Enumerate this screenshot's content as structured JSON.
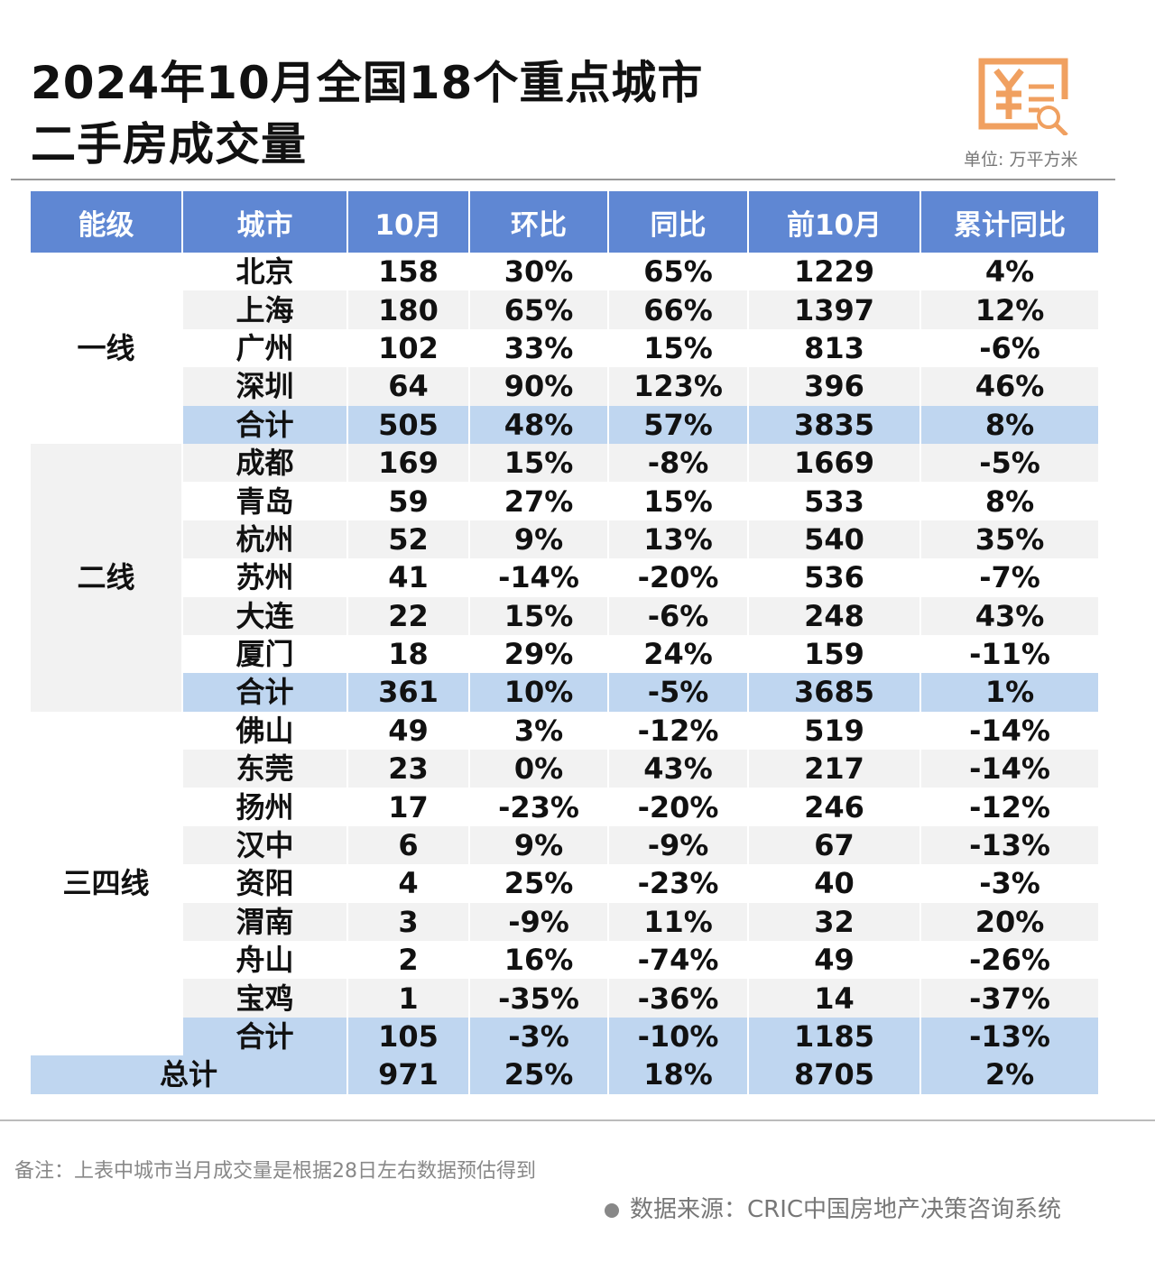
{
  "title_line1": "2024年10月全国18个重点城市",
  "title_line2": "二手房成交量",
  "unit": "单位: 万平方米",
  "colors": {
    "header": "#5f87d3",
    "subtotal": "#bfd6f0",
    "icon": "#f0a060"
  },
  "headers": [
    "能级",
    "城市",
    "10月",
    "环比",
    "同比",
    "前10月",
    "累计同比"
  ],
  "groups": [
    {
      "tier": "一线",
      "rows": [
        [
          "北京",
          "158",
          "30%",
          "65%",
          "1229",
          "4%"
        ],
        [
          "上海",
          "180",
          "65%",
          "66%",
          "1397",
          "12%"
        ],
        [
          "广州",
          "102",
          "33%",
          "15%",
          "813",
          "-6%"
        ],
        [
          "深圳",
          "64",
          "90%",
          "123%",
          "396",
          "46%"
        ],
        [
          "合计",
          "505",
          "48%",
          "57%",
          "3835",
          "8%"
        ]
      ]
    },
    {
      "tier": "二线",
      "rows": [
        [
          "成都",
          "169",
          "15%",
          "-8%",
          "1669",
          "-5%"
        ],
        [
          "青岛",
          "59",
          "27%",
          "15%",
          "533",
          "8%"
        ],
        [
          "杭州",
          "52",
          "9%",
          "13%",
          "540",
          "35%"
        ],
        [
          "苏州",
          "41",
          "-14%",
          "-20%",
          "536",
          "-7%"
        ],
        [
          "大连",
          "22",
          "15%",
          "-6%",
          "248",
          "43%"
        ],
        [
          "厦门",
          "18",
          "29%",
          "24%",
          "159",
          "-11%"
        ],
        [
          "合计",
          "361",
          "10%",
          "-5%",
          "3685",
          "1%"
        ]
      ]
    },
    {
      "tier": "三四线",
      "rows": [
        [
          "佛山",
          "49",
          "3%",
          "-12%",
          "519",
          "-14%"
        ],
        [
          "东莞",
          "23",
          "0%",
          "43%",
          "217",
          "-14%"
        ],
        [
          "扬州",
          "17",
          "-23%",
          "-20%",
          "246",
          "-12%"
        ],
        [
          "汉中",
          "6",
          "9%",
          "-9%",
          "67",
          "-13%"
        ],
        [
          "资阳",
          "4",
          "25%",
          "-23%",
          "40",
          "-3%"
        ],
        [
          "渭南",
          "3",
          "-9%",
          "11%",
          "32",
          "20%"
        ],
        [
          "舟山",
          "2",
          "16%",
          "-74%",
          "49",
          "-26%"
        ],
        [
          "宝鸡",
          "1",
          "-35%",
          "-36%",
          "14",
          "-37%"
        ],
        [
          "合计",
          "105",
          "-3%",
          "-10%",
          "1185",
          "-13%"
        ]
      ]
    }
  ],
  "total": [
    "总计",
    "971",
    "25%",
    "18%",
    "8705",
    "2%"
  ],
  "note": "备注：上表中城市当月成交量是根据28日左右数据预估得到",
  "source": "数据来源：CRIC中国房地产决策咨询系统"
}
